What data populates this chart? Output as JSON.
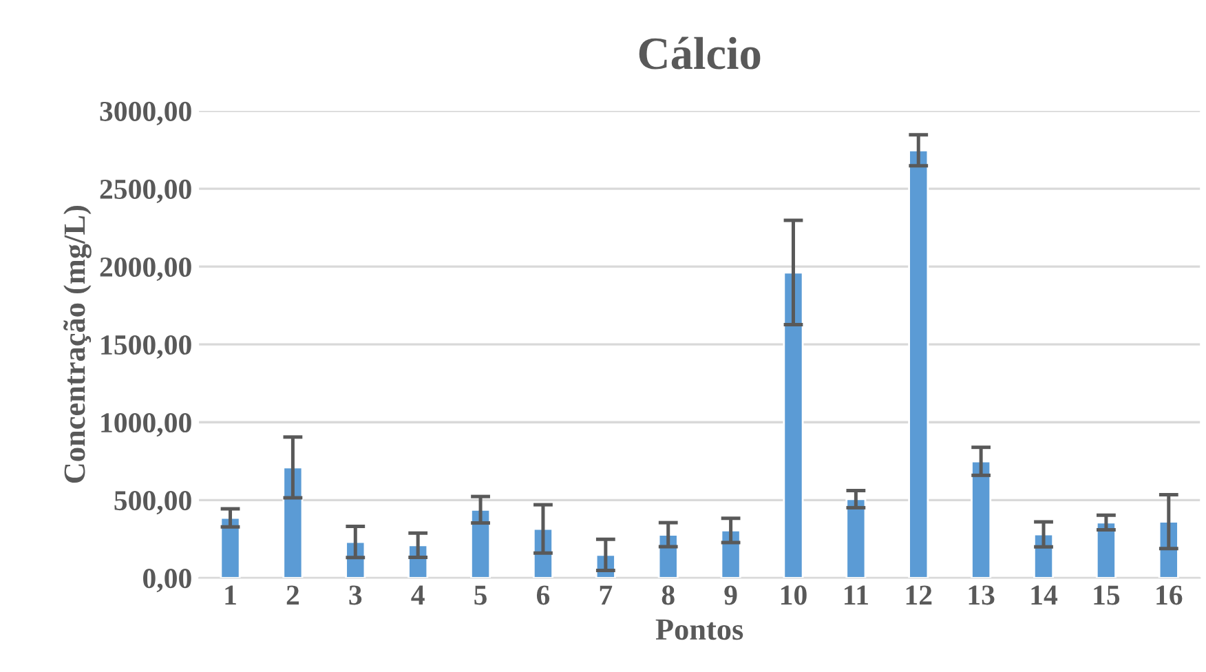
{
  "chart_data": {
    "type": "bar",
    "title": "Cálcio",
    "xlabel": "Pontos",
    "ylabel": "Concentração (mg/L)",
    "categories": [
      "1",
      "2",
      "3",
      "4",
      "5",
      "6",
      "7",
      "8",
      "9",
      "10",
      "11",
      "12",
      "13",
      "14",
      "15",
      "16"
    ],
    "values": [
      386,
      710,
      231,
      210,
      438,
      315,
      148,
      278,
      305,
      1962,
      506,
      2747,
      749,
      280,
      356,
      362
    ],
    "errors": [
      58,
      195,
      100,
      78,
      85,
      155,
      100,
      77,
      78,
      335,
      55,
      100,
      90,
      80,
      47,
      173
    ],
    "color": "#5b9bd5",
    "ylim": [
      0,
      3000
    ],
    "yticks": [
      {
        "value": 0,
        "label": "0,00"
      },
      {
        "value": 500,
        "label": "500,00"
      },
      {
        "value": 1000,
        "label": "1000,00"
      },
      {
        "value": 1500,
        "label": "1500,00"
      },
      {
        "value": 2000,
        "label": "2000,00"
      },
      {
        "value": 2500,
        "label": "2500,00"
      },
      {
        "value": 3000,
        "label": "3000,00"
      }
    ],
    "grid": "y",
    "legend": false
  }
}
